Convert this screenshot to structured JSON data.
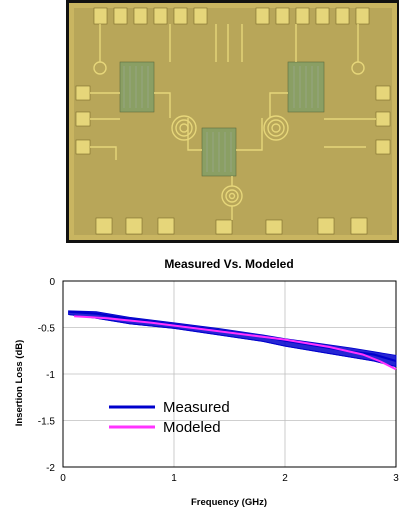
{
  "photo": {
    "caption": "",
    "description_name": "chip micrograph"
  },
  "chart_data": {
    "type": "line",
    "title": "Measured Vs. Modeled",
    "xlabel": "Frequency (GHz)",
    "ylabel": "Insertion Loss (dB)",
    "xlim": [
      0,
      3
    ],
    "ylim": [
      -2,
      0
    ],
    "x_ticks": [
      "0",
      "1",
      "2",
      "3"
    ],
    "y_ticks": [
      "0",
      "-0.5",
      "-1",
      "-1.5",
      "-2"
    ],
    "grid": true,
    "legend_position": "bottom-left",
    "series": [
      {
        "name": "Measured",
        "color": "#0000cc",
        "x": [
          0.05,
          0.3,
          0.6,
          1.0,
          1.4,
          1.8,
          2.0,
          2.3,
          2.6,
          2.8,
          3.0
        ],
        "y": [
          -0.33,
          -0.35,
          -0.41,
          -0.47,
          -0.53,
          -0.6,
          -0.64,
          -0.7,
          -0.76,
          -0.79,
          -0.86
        ],
        "bounds_upper": [
          -0.32,
          -0.33,
          -0.39,
          -0.45,
          -0.51,
          -0.58,
          -0.62,
          -0.67,
          -0.72,
          -0.76,
          -0.8
        ],
        "bounds_lower": [
          -0.36,
          -0.4,
          -0.46,
          -0.51,
          -0.58,
          -0.65,
          -0.7,
          -0.76,
          -0.82,
          -0.86,
          -0.92
        ]
      },
      {
        "name": "Modeled",
        "color": "#ff33ff",
        "x": [
          0.1,
          0.4,
          0.8,
          1.2,
          1.6,
          2.0,
          2.4,
          2.7,
          2.85,
          3.0
        ],
        "y": [
          -0.38,
          -0.4,
          -0.45,
          -0.51,
          -0.57,
          -0.63,
          -0.71,
          -0.79,
          -0.86,
          -0.95
        ]
      }
    ]
  }
}
